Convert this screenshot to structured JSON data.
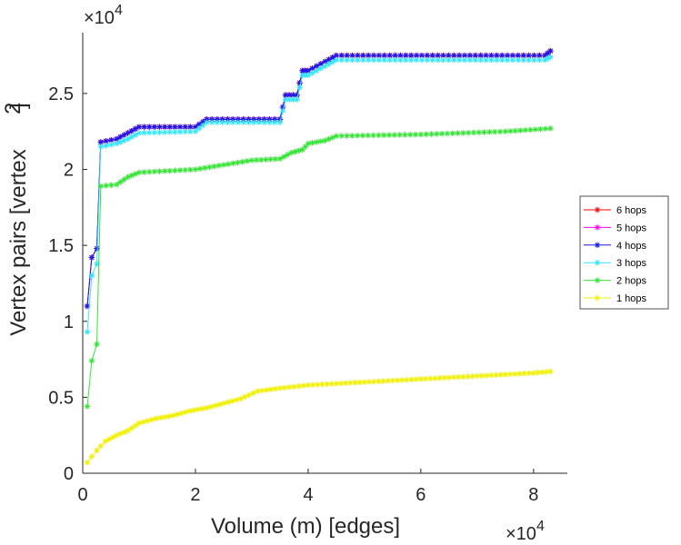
{
  "chart_data": {
    "type": "line",
    "title": "",
    "xlabel": "Volume (m) [edges]",
    "ylabel": "Vertex pairs [vertex",
    "ylabel_superscript": "2",
    "ylabel_close": "]",
    "x_exponent_base": "×10",
    "x_exponent_power": "4",
    "y_exponent_base": "×10",
    "y_exponent_power": "4",
    "xlim": [
      0,
      86000
    ],
    "ylim": [
      0,
      29000
    ],
    "x_ticks": [
      0,
      20000,
      40000,
      60000,
      80000
    ],
    "x_tick_labels": [
      "0",
      "2",
      "4",
      "6",
      "8"
    ],
    "y_ticks": [
      0,
      5000,
      10000,
      15000,
      20000,
      25000
    ],
    "y_tick_labels": [
      "0",
      "0.5",
      "1",
      "1.5",
      "2",
      "2.5"
    ],
    "grid": false,
    "legend_position": "right",
    "series": [
      {
        "name": "6 hops",
        "color": "#ff0000",
        "x": [
          800,
          1600,
          2500,
          3200,
          6000,
          8000,
          10000,
          20000,
          22000,
          35000,
          36000,
          38000,
          39000,
          40000,
          43000,
          45000,
          82000,
          83000
        ],
        "y": [
          11000,
          14200,
          14800,
          21800,
          22000,
          22400,
          22800,
          22800,
          23300,
          23300,
          24900,
          24900,
          26500,
          26500,
          27100,
          27500,
          27500,
          27800
        ]
      },
      {
        "name": "5 hops",
        "color": "#ff00ff",
        "x": [
          800,
          1600,
          2500,
          3200,
          6000,
          8000,
          10000,
          20000,
          22000,
          35000,
          36000,
          38000,
          39000,
          40000,
          43000,
          45000,
          82000,
          83000
        ],
        "y": [
          11000,
          14200,
          14800,
          21800,
          22000,
          22400,
          22800,
          22800,
          23300,
          23300,
          24900,
          24900,
          26500,
          26500,
          27100,
          27500,
          27500,
          27800
        ]
      },
      {
        "name": "4 hops",
        "color": "#1a1ae6",
        "x": [
          800,
          1600,
          2500,
          3200,
          6000,
          8000,
          10000,
          20000,
          22000,
          35000,
          36000,
          38000,
          39000,
          40000,
          43000,
          45000,
          82000,
          83000
        ],
        "y": [
          11000,
          14200,
          14800,
          21800,
          22000,
          22400,
          22800,
          22800,
          23300,
          23300,
          24900,
          24900,
          26500,
          26500,
          27100,
          27500,
          27500,
          27800
        ]
      },
      {
        "name": "3 hops",
        "color": "#33e6ff",
        "x": [
          800,
          1600,
          2500,
          3200,
          6000,
          8000,
          10000,
          20000,
          22000,
          35000,
          36000,
          38000,
          39000,
          40000,
          43000,
          45000,
          82000,
          83000
        ],
        "y": [
          9300,
          13000,
          13800,
          21500,
          21700,
          22000,
          22400,
          22500,
          23100,
          23100,
          24600,
          24600,
          26200,
          26200,
          26800,
          27200,
          27200,
          27400
        ]
      },
      {
        "name": "2 hops",
        "color": "#33e633",
        "x": [
          800,
          1600,
          2500,
          3200,
          6000,
          8000,
          10000,
          20000,
          25000,
          30000,
          35000,
          37000,
          39000,
          40000,
          43000,
          45000,
          60000,
          75000,
          83000
        ],
        "y": [
          4400,
          7400,
          8500,
          18900,
          19000,
          19500,
          19800,
          20000,
          20300,
          20600,
          20700,
          21100,
          21300,
          21700,
          21900,
          22200,
          22300,
          22500,
          22700
        ]
      },
      {
        "name": "1 hops",
        "color": "#f0f000",
        "x": [
          800,
          1600,
          2500,
          3200,
          4000,
          6000,
          8000,
          10000,
          13000,
          16000,
          19000,
          22000,
          25000,
          28000,
          31000,
          35000,
          40000,
          45000,
          50000,
          55000,
          60000,
          65000,
          70000,
          75000,
          80000,
          83000
        ],
        "y": [
          700,
          1100,
          1500,
          1800,
          2100,
          2500,
          2800,
          3300,
          3600,
          3800,
          4100,
          4300,
          4600,
          4900,
          5400,
          5600,
          5800,
          5900,
          6000,
          6100,
          6200,
          6300,
          6400,
          6500,
          6600,
          6700
        ]
      }
    ]
  }
}
